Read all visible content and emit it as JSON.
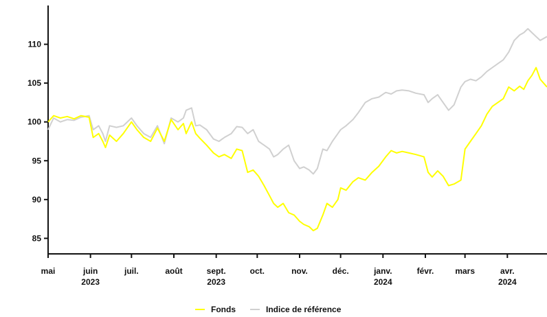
{
  "chart_data": {
    "type": "line",
    "ylim": [
      83,
      115
    ],
    "grid": false,
    "legend_position": "bottom",
    "y_ticks": [
      85,
      90,
      95,
      100,
      105,
      110
    ],
    "x_ticks": [
      {
        "label": "mai",
        "date": "2023-05-01"
      },
      {
        "label": "juin",
        "date": "2023-06-01"
      },
      {
        "label": "juil.",
        "date": "2023-07-01"
      },
      {
        "label": "août",
        "date": "2023-08-01"
      },
      {
        "label": "sept.",
        "date": "2023-09-01"
      },
      {
        "label": "oct.",
        "date": "2023-10-01"
      },
      {
        "label": "nov.",
        "date": "2023-11-01"
      },
      {
        "label": "déc.",
        "date": "2023-12-01"
      },
      {
        "label": "janv.",
        "date": "2024-01-01"
      },
      {
        "label": "févr.",
        "date": "2024-02-01"
      },
      {
        "label": "mars",
        "date": "2024-03-01"
      },
      {
        "label": "avr.",
        "date": "2024-04-01"
      }
    ],
    "year_labels": [
      {
        "label": "2023",
        "date": "2023-06-01"
      },
      {
        "label": "2023",
        "date": "2023-09-01"
      },
      {
        "label": "2024",
        "date": "2024-01-01"
      },
      {
        "label": "2024",
        "date": "2024-04-01"
      }
    ],
    "x_start": "2023-05-01",
    "x_end": "2024-04-30",
    "series": [
      {
        "name": "Fonds",
        "color": "#ffff00",
        "points": [
          [
            "2023-05-01",
            100.0
          ],
          [
            "2023-05-05",
            100.8
          ],
          [
            "2023-05-10",
            100.5
          ],
          [
            "2023-05-15",
            100.7
          ],
          [
            "2023-05-20",
            100.4
          ],
          [
            "2023-05-25",
            100.8
          ],
          [
            "2023-05-31",
            100.6
          ],
          [
            "2023-06-03",
            98.0
          ],
          [
            "2023-06-07",
            98.5
          ],
          [
            "2023-06-10",
            97.5
          ],
          [
            "2023-06-12",
            96.7
          ],
          [
            "2023-06-15",
            98.3
          ],
          [
            "2023-06-20",
            97.5
          ],
          [
            "2023-06-25",
            98.5
          ],
          [
            "2023-07-01",
            100.0
          ],
          [
            "2023-07-05",
            99.0
          ],
          [
            "2023-07-10",
            98.0
          ],
          [
            "2023-07-15",
            97.5
          ],
          [
            "2023-07-20",
            99.2
          ],
          [
            "2023-07-25",
            97.5
          ],
          [
            "2023-07-30",
            100.3
          ],
          [
            "2023-08-04",
            99.0
          ],
          [
            "2023-08-08",
            99.8
          ],
          [
            "2023-08-10",
            98.5
          ],
          [
            "2023-08-14",
            100.0
          ],
          [
            "2023-08-17",
            98.5
          ],
          [
            "2023-08-20",
            97.9
          ],
          [
            "2023-08-25",
            97.0
          ],
          [
            "2023-08-30",
            96.0
          ],
          [
            "2023-09-03",
            95.5
          ],
          [
            "2023-09-07",
            95.8
          ],
          [
            "2023-09-12",
            95.3
          ],
          [
            "2023-09-16",
            96.5
          ],
          [
            "2023-09-20",
            96.3
          ],
          [
            "2023-09-24",
            93.5
          ],
          [
            "2023-09-28",
            93.8
          ],
          [
            "2023-10-02",
            93.0
          ],
          [
            "2023-10-06",
            91.8
          ],
          [
            "2023-10-10",
            90.5
          ],
          [
            "2023-10-13",
            89.5
          ],
          [
            "2023-10-16",
            89.0
          ],
          [
            "2023-10-20",
            89.5
          ],
          [
            "2023-10-24",
            88.3
          ],
          [
            "2023-10-28",
            88.0
          ],
          [
            "2023-11-01",
            87.2
          ],
          [
            "2023-11-04",
            86.8
          ],
          [
            "2023-11-08",
            86.5
          ],
          [
            "2023-11-11",
            86.0
          ],
          [
            "2023-11-14",
            86.3
          ],
          [
            "2023-11-18",
            88.0
          ],
          [
            "2023-11-21",
            89.5
          ],
          [
            "2023-11-25",
            89.0
          ],
          [
            "2023-11-29",
            90.0
          ],
          [
            "2023-12-01",
            91.5
          ],
          [
            "2023-12-05",
            91.2
          ],
          [
            "2023-12-10",
            92.3
          ],
          [
            "2023-12-14",
            92.8
          ],
          [
            "2023-12-19",
            92.5
          ],
          [
            "2023-12-24",
            93.5
          ],
          [
            "2023-12-29",
            94.3
          ],
          [
            "2024-01-03",
            95.5
          ],
          [
            "2024-01-07",
            96.3
          ],
          [
            "2024-01-11",
            96.0
          ],
          [
            "2024-01-15",
            96.2
          ],
          [
            "2024-01-20",
            96.0
          ],
          [
            "2024-01-25",
            95.8
          ],
          [
            "2024-01-31",
            95.5
          ],
          [
            "2024-02-03",
            93.5
          ],
          [
            "2024-02-06",
            92.9
          ],
          [
            "2024-02-10",
            93.7
          ],
          [
            "2024-02-14",
            93.0
          ],
          [
            "2024-02-18",
            91.8
          ],
          [
            "2024-02-22",
            92.0
          ],
          [
            "2024-02-27",
            92.5
          ],
          [
            "2024-03-01",
            96.5
          ],
          [
            "2024-03-05",
            97.5
          ],
          [
            "2024-03-09",
            98.5
          ],
          [
            "2024-03-13",
            99.5
          ],
          [
            "2024-03-17",
            101.0
          ],
          [
            "2024-03-21",
            102.0
          ],
          [
            "2024-03-25",
            102.5
          ],
          [
            "2024-03-29",
            103.0
          ],
          [
            "2024-04-02",
            104.5
          ],
          [
            "2024-04-06",
            104.0
          ],
          [
            "2024-04-10",
            104.6
          ],
          [
            "2024-04-13",
            104.2
          ],
          [
            "2024-04-16",
            105.3
          ],
          [
            "2024-04-19",
            106.0
          ],
          [
            "2024-04-22",
            107.0
          ],
          [
            "2024-04-25",
            105.5
          ],
          [
            "2024-04-30",
            104.5
          ]
        ]
      },
      {
        "name": "Indice de référence",
        "color": "#d0d0d0",
        "points": [
          [
            "2023-05-01",
            99.0
          ],
          [
            "2023-05-05",
            100.5
          ],
          [
            "2023-05-10",
            100.0
          ],
          [
            "2023-05-15",
            100.3
          ],
          [
            "2023-05-20",
            100.2
          ],
          [
            "2023-05-25",
            100.6
          ],
          [
            "2023-05-31",
            100.8
          ],
          [
            "2023-06-03",
            99.0
          ],
          [
            "2023-06-07",
            99.5
          ],
          [
            "2023-06-10",
            98.5
          ],
          [
            "2023-06-12",
            97.5
          ],
          [
            "2023-06-15",
            99.5
          ],
          [
            "2023-06-20",
            99.3
          ],
          [
            "2023-06-25",
            99.5
          ],
          [
            "2023-07-01",
            100.5
          ],
          [
            "2023-07-05",
            99.5
          ],
          [
            "2023-07-10",
            98.5
          ],
          [
            "2023-07-15",
            98.0
          ],
          [
            "2023-07-20",
            99.5
          ],
          [
            "2023-07-25",
            97.2
          ],
          [
            "2023-07-30",
            100.5
          ],
          [
            "2023-08-04",
            100.0
          ],
          [
            "2023-08-08",
            100.5
          ],
          [
            "2023-08-10",
            101.5
          ],
          [
            "2023-08-14",
            101.8
          ],
          [
            "2023-08-17",
            99.5
          ],
          [
            "2023-08-20",
            99.6
          ],
          [
            "2023-08-25",
            99.0
          ],
          [
            "2023-08-30",
            97.8
          ],
          [
            "2023-09-03",
            97.5
          ],
          [
            "2023-09-07",
            98.0
          ],
          [
            "2023-09-12",
            98.5
          ],
          [
            "2023-09-16",
            99.4
          ],
          [
            "2023-09-20",
            99.3
          ],
          [
            "2023-09-24",
            98.5
          ],
          [
            "2023-09-28",
            99.0
          ],
          [
            "2023-10-02",
            97.5
          ],
          [
            "2023-10-06",
            97.0
          ],
          [
            "2023-10-10",
            96.5
          ],
          [
            "2023-10-13",
            95.5
          ],
          [
            "2023-10-16",
            95.8
          ],
          [
            "2023-10-20",
            96.5
          ],
          [
            "2023-10-24",
            97.0
          ],
          [
            "2023-10-28",
            95.0
          ],
          [
            "2023-11-01",
            94.0
          ],
          [
            "2023-11-04",
            94.2
          ],
          [
            "2023-11-08",
            93.8
          ],
          [
            "2023-11-11",
            93.3
          ],
          [
            "2023-11-14",
            94.0
          ],
          [
            "2023-11-18",
            96.5
          ],
          [
            "2023-11-21",
            96.3
          ],
          [
            "2023-11-25",
            97.5
          ],
          [
            "2023-11-29",
            98.5
          ],
          [
            "2023-12-01",
            99.0
          ],
          [
            "2023-12-05",
            99.5
          ],
          [
            "2023-12-10",
            100.3
          ],
          [
            "2023-12-14",
            101.2
          ],
          [
            "2023-12-19",
            102.5
          ],
          [
            "2023-12-24",
            103.0
          ],
          [
            "2023-12-29",
            103.2
          ],
          [
            "2024-01-03",
            103.8
          ],
          [
            "2024-01-07",
            103.6
          ],
          [
            "2024-01-11",
            104.0
          ],
          [
            "2024-01-15",
            104.1
          ],
          [
            "2024-01-20",
            104.0
          ],
          [
            "2024-01-25",
            103.7
          ],
          [
            "2024-01-31",
            103.5
          ],
          [
            "2024-02-03",
            102.5
          ],
          [
            "2024-02-06",
            103.0
          ],
          [
            "2024-02-10",
            103.5
          ],
          [
            "2024-02-14",
            102.5
          ],
          [
            "2024-02-18",
            101.5
          ],
          [
            "2024-02-22",
            102.2
          ],
          [
            "2024-02-27",
            104.5
          ],
          [
            "2024-03-01",
            105.2
          ],
          [
            "2024-03-05",
            105.5
          ],
          [
            "2024-03-09",
            105.3
          ],
          [
            "2024-03-13",
            105.8
          ],
          [
            "2024-03-17",
            106.5
          ],
          [
            "2024-03-21",
            107.0
          ],
          [
            "2024-03-25",
            107.5
          ],
          [
            "2024-03-29",
            108.0
          ],
          [
            "2024-04-02",
            109.0
          ],
          [
            "2024-04-06",
            110.5
          ],
          [
            "2024-04-10",
            111.2
          ],
          [
            "2024-04-13",
            111.5
          ],
          [
            "2024-04-16",
            112.0
          ],
          [
            "2024-04-19",
            111.5
          ],
          [
            "2024-04-22",
            111.0
          ],
          [
            "2024-04-25",
            110.5
          ],
          [
            "2024-04-30",
            111.0
          ]
        ]
      }
    ]
  }
}
